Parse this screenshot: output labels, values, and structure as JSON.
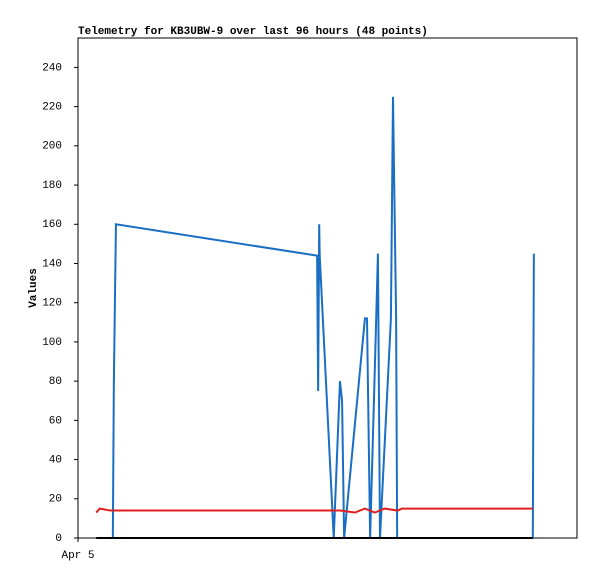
{
  "chart_data": {
    "type": "line",
    "title": "Telemetry for KB3UBW-9 over last 96 hours (48 points)",
    "y_label": "Values",
    "xlim": [
      0,
      96
    ],
    "xticks": [
      {
        "value": 0,
        "label": "Apr 5"
      }
    ],
    "ylim": [
      0,
      255
    ],
    "yticks": [
      0,
      20,
      40,
      60,
      80,
      100,
      120,
      140,
      160,
      180,
      200,
      220,
      240
    ],
    "grid": false,
    "series": [
      {
        "color": "#1a6fc4",
        "x": [
          6.7,
          6.9,
          7.3,
          46.0,
          46.2,
          46.4,
          46.5,
          49.2,
          50.4,
          50.8,
          51.2,
          55.2,
          55.6,
          56.2,
          57.3,
          57.7,
          58.1,
          60.2,
          60.6,
          60.8,
          61.2,
          61.4,
          87.5,
          87.7
        ],
        "values": [
          0,
          80,
          160,
          144,
          75,
          160,
          144,
          0,
          80,
          70,
          0,
          112,
          112,
          0,
          105,
          145,
          0,
          112,
          225,
          187,
          112,
          0,
          0,
          145
        ]
      },
      {
        "color": "#e02020",
        "x": [
          3.5,
          4.2,
          6.2,
          50.4,
          53.3,
          55.2,
          57.1,
          59.0,
          61.5,
          62.3,
          87.5
        ],
        "values": [
          13,
          15,
          14,
          14,
          13,
          15,
          13,
          15,
          14,
          15,
          15
        ]
      },
      {
        "color": "#000000",
        "x": [
          3.5,
          87.5
        ],
        "values": [
          0,
          0
        ]
      }
    ]
  }
}
